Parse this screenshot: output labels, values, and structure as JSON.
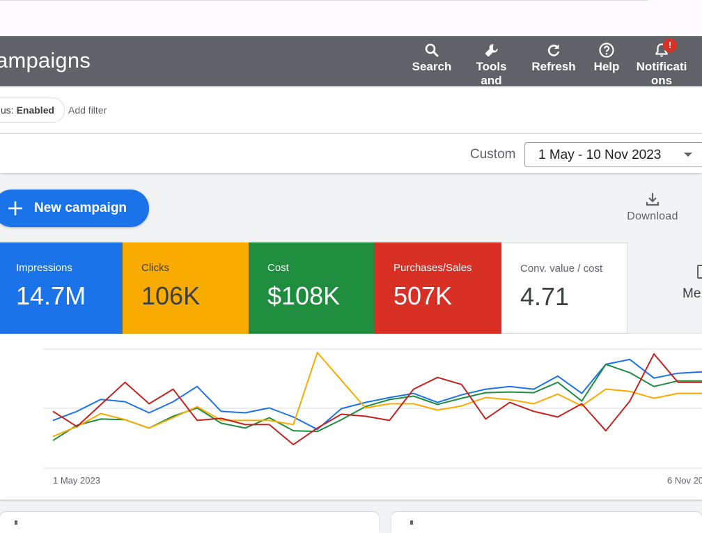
{
  "header": {
    "title": "ampaigns",
    "buttons": [
      {
        "label": "Search",
        "icon": "search-icon"
      },
      {
        "label": "Tools and",
        "icon": "wrench-icon"
      },
      {
        "label": "Refresh",
        "icon": "refresh-icon"
      },
      {
        "label": "Help",
        "icon": "help-icon"
      },
      {
        "label": "Notifications",
        "icon": "bell-icon"
      }
    ],
    "notification_badge": "!"
  },
  "filters": {
    "chip_label": "us:",
    "chip_value": "Enabled",
    "add_filter": "Add filter"
  },
  "date": {
    "range_label": "Custom",
    "range_value": "1 May - 10 Nov 2023"
  },
  "actions": {
    "new_campaign": "New campaign",
    "download": "Download"
  },
  "metrics": [
    {
      "label": "Impressions",
      "value": "14.7M",
      "color": "#1a73e8"
    },
    {
      "label": "Clicks",
      "value": "106K",
      "color": "#f9ab00"
    },
    {
      "label": "Cost",
      "value": "$108K",
      "color": "#1e8e3e"
    },
    {
      "label": "Purchases/Sales",
      "value": "507K",
      "color": "#d93025"
    },
    {
      "label": "Conv. value / cost",
      "value": "4.71",
      "color": "#ffffff"
    }
  ],
  "more_metrics_label": "Me",
  "chart_data": {
    "type": "line",
    "x_labels": [
      "1 May 2023",
      "6 Nov 20"
    ],
    "series": [
      {
        "color": "#1a73e8",
        "values": [
          40.1,
          47.7,
          57.8,
          55.8,
          46.5,
          55.8,
          68.6,
          47.7,
          46.5,
          50.6,
          43.0,
          32.6,
          50.0,
          55.2,
          59.3,
          62.8,
          55.2,
          61.6,
          66.3,
          68.6,
          66.3,
          77.3,
          62.8,
          87.2,
          91.3,
          75.6,
          79.7,
          80.8
        ]
      },
      {
        "color": "#1e8e3e",
        "values": [
          23.3,
          36.0,
          41.3,
          40.7,
          33.7,
          43.6,
          50.6,
          37.8,
          33.7,
          42.4,
          31.4,
          30.8,
          40.7,
          51.7,
          57.6,
          60.5,
          53.5,
          58.7,
          63.4,
          64.0,
          63.4,
          72.1,
          56.4,
          87.2,
          80.2,
          68.6,
          73.3,
          73.3
        ]
      },
      {
        "color": "#f9ab00",
        "values": [
          26.7,
          34.9,
          45.9,
          40.7,
          33.7,
          42.4,
          51.7,
          40.1,
          40.1,
          40.1,
          36.6,
          97.1,
          73.8,
          50.6,
          54.1,
          54.1,
          48.8,
          52.3,
          59.3,
          57.6,
          54.1,
          62.2,
          52.3,
          66.3,
          64.5,
          58.7,
          62.8,
          62.8
        ]
      },
      {
        "color": "#c5221f",
        "values": [
          47.7,
          34.9,
          53.5,
          72.1,
          54.1,
          66.3,
          40.1,
          41.9,
          36.6,
          36.6,
          19.8,
          33.7,
          45.3,
          43.6,
          40.1,
          66.3,
          76.2,
          70.3,
          41.3,
          55.2,
          47.7,
          43.0,
          54.1,
          31.4,
          56.4,
          95.9,
          72.1,
          72.1
        ]
      }
    ]
  }
}
